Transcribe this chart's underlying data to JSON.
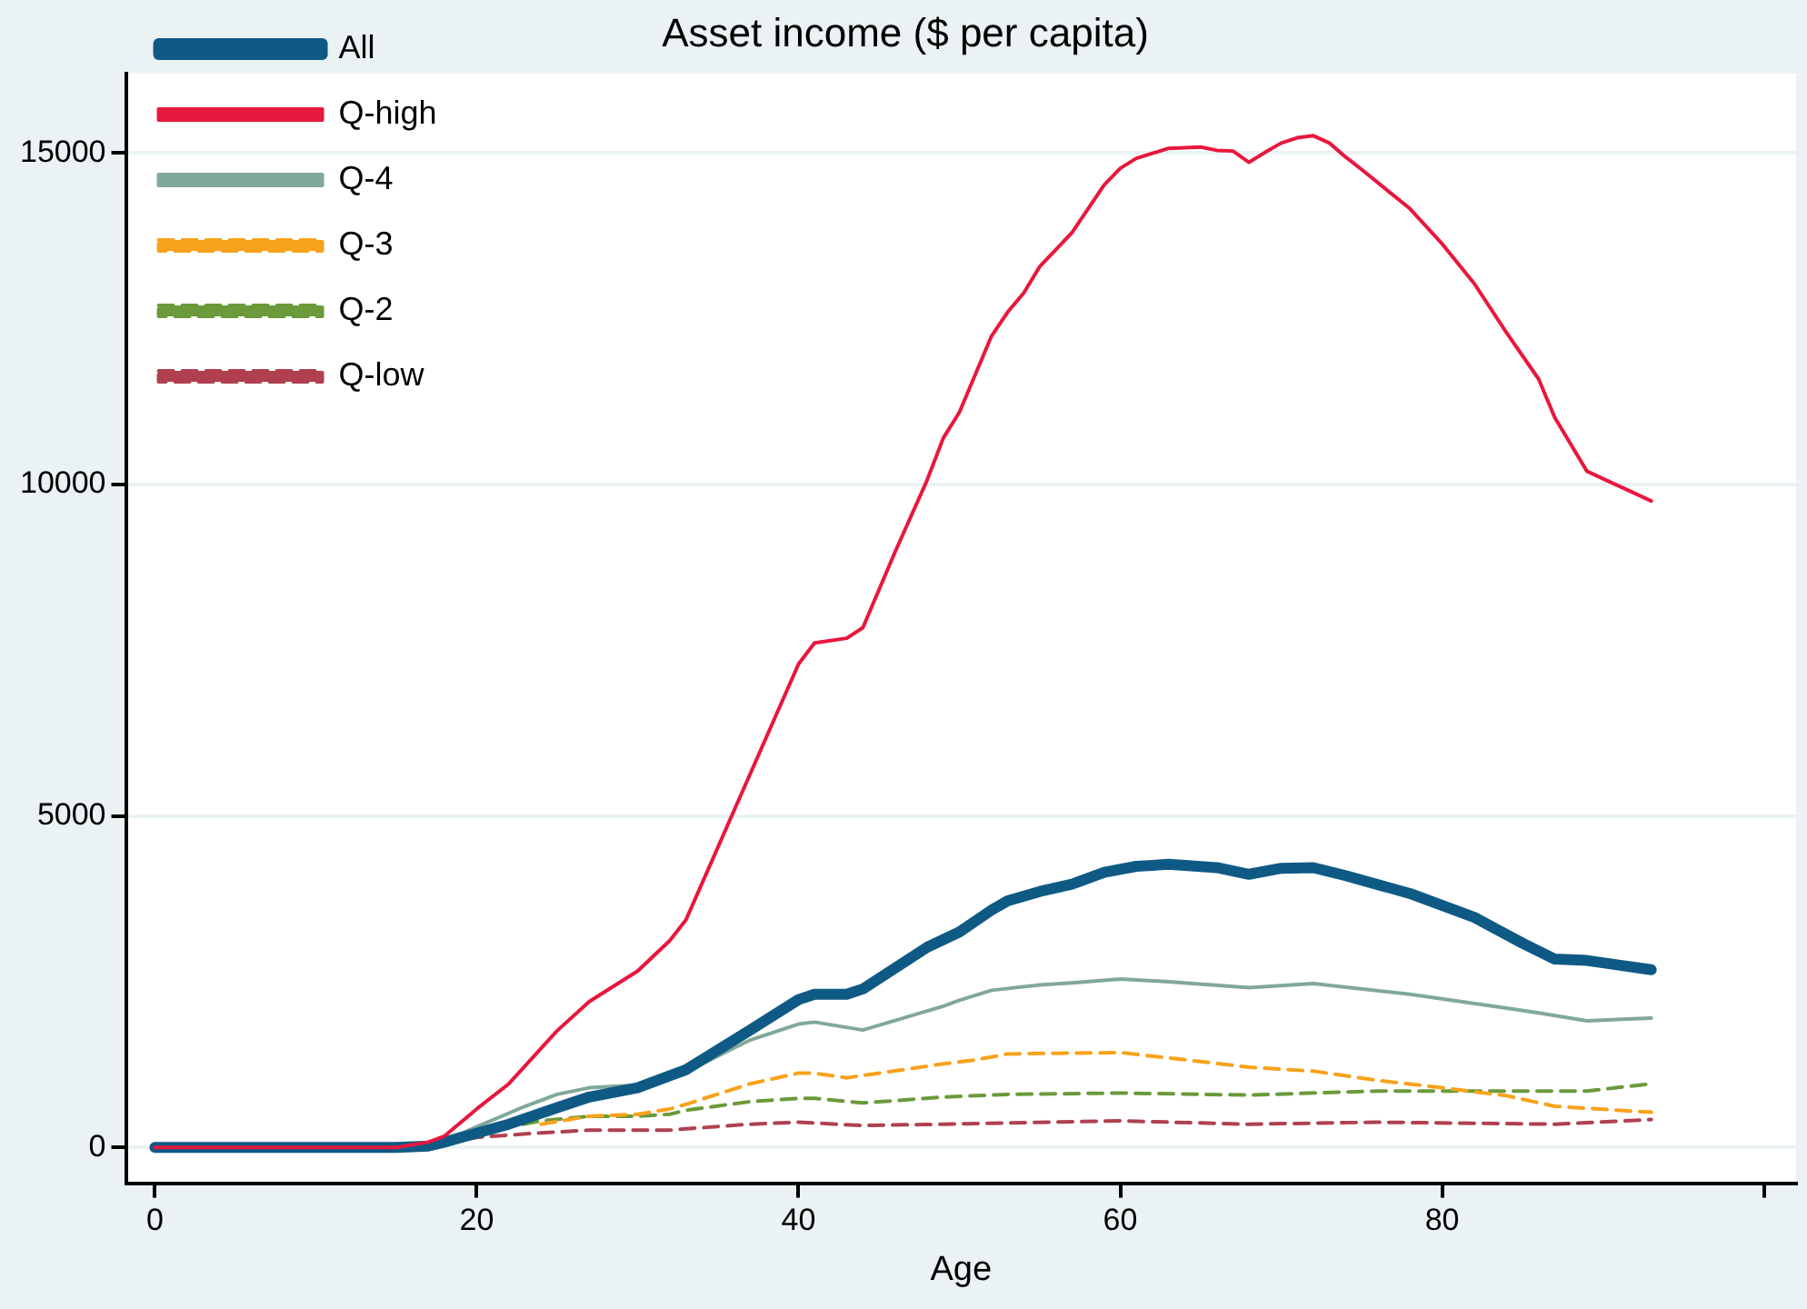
{
  "chart_data": {
    "type": "line",
    "title": "Asset income ($ per capita)",
    "xlabel": "Age",
    "xlim": [
      -1.8,
      102
    ],
    "xticks": [
      0,
      20,
      40,
      60,
      80,
      {
        "value": 100,
        "label": null
      }
    ],
    "ylim": [
      -540,
      16200
    ],
    "yticks": [
      0,
      5000,
      10000,
      15000
    ],
    "grid": "y",
    "legend": "top left",
    "marker": "none",
    "series": [
      {
        "name": "All",
        "color": "#0f5a85",
        "line_style": "solid",
        "x": [
          0,
          5,
          10,
          15,
          17,
          18,
          22,
          25,
          27,
          30,
          32,
          33,
          37,
          40,
          41,
          43,
          44,
          48,
          50,
          52,
          53,
          55,
          57,
          59,
          61,
          63,
          66,
          68,
          70,
          72,
          74,
          78,
          82,
          85,
          87,
          89,
          93
        ],
        "values": [
          0,
          0,
          0,
          0,
          20,
          80,
          350,
          600,
          760,
          900,
          1080,
          1170,
          1770,
          2230,
          2310,
          2310,
          2390,
          3020,
          3250,
          3580,
          3720,
          3860,
          3970,
          4150,
          4240,
          4270,
          4220,
          4120,
          4210,
          4220,
          4100,
          3830,
          3470,
          3080,
          2840,
          2820,
          2680
        ]
      },
      {
        "name": "Q-high",
        "color": "#e8173d",
        "line_style": "solid",
        "x": [
          0,
          5,
          10,
          15,
          17,
          18,
          20,
          22,
          25,
          27,
          30,
          32,
          33,
          40,
          41,
          43,
          44,
          46,
          48,
          49,
          50,
          52,
          53,
          54,
          55,
          57,
          59,
          60,
          61,
          63,
          65,
          66,
          67,
          68,
          69,
          70,
          71,
          72,
          73,
          74,
          75,
          78,
          80,
          82,
          84,
          86,
          87,
          89,
          93
        ],
        "values": [
          0,
          0,
          0,
          0,
          80,
          170,
          580,
          960,
          1760,
          2200,
          2660,
          3120,
          3430,
          7290,
          7610,
          7680,
          7840,
          8980,
          10070,
          10700,
          11090,
          12240,
          12600,
          12890,
          13290,
          13800,
          14520,
          14770,
          14920,
          15070,
          15090,
          15040,
          15030,
          14860,
          15010,
          15150,
          15230,
          15260,
          15150,
          14940,
          14750,
          14160,
          13630,
          13030,
          12290,
          11590,
          11010,
          10200,
          9750
        ]
      },
      {
        "name": "Q-4",
        "color": "#80a898",
        "line_style": "solid",
        "x": [
          18,
          20,
          23,
          25,
          27,
          30,
          32,
          33,
          37,
          40,
          41,
          44,
          49,
          50,
          52,
          55,
          57,
          60,
          63,
          68,
          72,
          78,
          84,
          86,
          89,
          93
        ],
        "values": [
          100,
          310,
          620,
          800,
          900,
          940,
          1030,
          1140,
          1620,
          1860,
          1890,
          1770,
          2130,
          2220,
          2370,
          2450,
          2480,
          2540,
          2500,
          2410,
          2470,
          2310,
          2100,
          2030,
          1910,
          1950
        ]
      },
      {
        "name": "Q-3",
        "color": "#f7a21b",
        "line_style": "dashed",
        "x": [
          24,
          27,
          30,
          32,
          33,
          37,
          40,
          41,
          43,
          49,
          51,
          53,
          56,
          60,
          63,
          68,
          72,
          76,
          80,
          84,
          87,
          93
        ],
        "values": [
          350,
          470,
          500,
          580,
          650,
          960,
          1120,
          1120,
          1050,
          1260,
          1320,
          1410,
          1420,
          1430,
          1350,
          1210,
          1150,
          1010,
          900,
          780,
          620,
          530
        ]
      },
      {
        "name": "Q-2",
        "color": "#6a9a3a",
        "line_style": "dashed",
        "x": [
          20,
          24,
          27,
          30,
          32,
          33,
          37,
          40,
          41,
          44,
          49,
          53,
          60,
          68,
          76,
          84,
          89,
          93
        ],
        "values": [
          220,
          400,
          470,
          470,
          500,
          560,
          690,
          740,
          740,
          670,
          760,
          800,
          820,
          790,
          850,
          850,
          850,
          960
        ]
      },
      {
        "name": "Q-low",
        "color": "#b04050",
        "line_style": "dashed",
        "x": [
          18,
          20,
          24,
          27,
          32,
          33,
          37,
          40,
          44,
          49,
          60,
          68,
          76,
          87,
          93
        ],
        "values": [
          80,
          150,
          220,
          260,
          260,
          280,
          350,
          380,
          330,
          350,
          400,
          350,
          380,
          350,
          420
        ]
      }
    ]
  }
}
